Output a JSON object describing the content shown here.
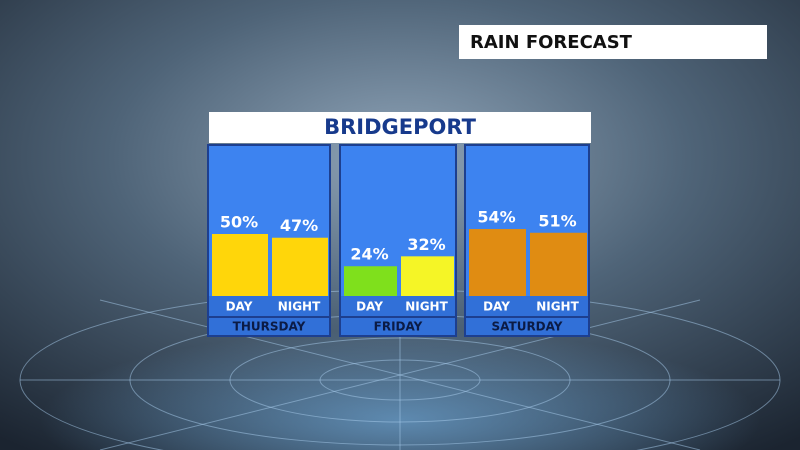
{
  "chart_data": {
    "type": "bar",
    "title": "RAIN FORECAST",
    "subtitle": "BRIDGEPORT",
    "groups": [
      {
        "name": "THURSDAY",
        "categories": [
          "DAY",
          "NIGHT"
        ],
        "values": [
          50,
          47
        ],
        "value_labels": [
          "50%",
          "47%"
        ],
        "colors": [
          "#ffd60a",
          "#ffd60a"
        ]
      },
      {
        "name": "FRIDAY",
        "categories": [
          "DAY",
          "NIGHT"
        ],
        "values": [
          24,
          32
        ],
        "value_labels": [
          "24%",
          "32%"
        ],
        "colors": [
          "#7fe01c",
          "#f5f526"
        ]
      },
      {
        "name": "SATURDAY",
        "categories": [
          "DAY",
          "NIGHT"
        ],
        "values": [
          54,
          51
        ],
        "value_labels": [
          "54%",
          "51%"
        ],
        "colors": [
          "#e08c12",
          "#e08c12"
        ]
      }
    ]
  }
}
